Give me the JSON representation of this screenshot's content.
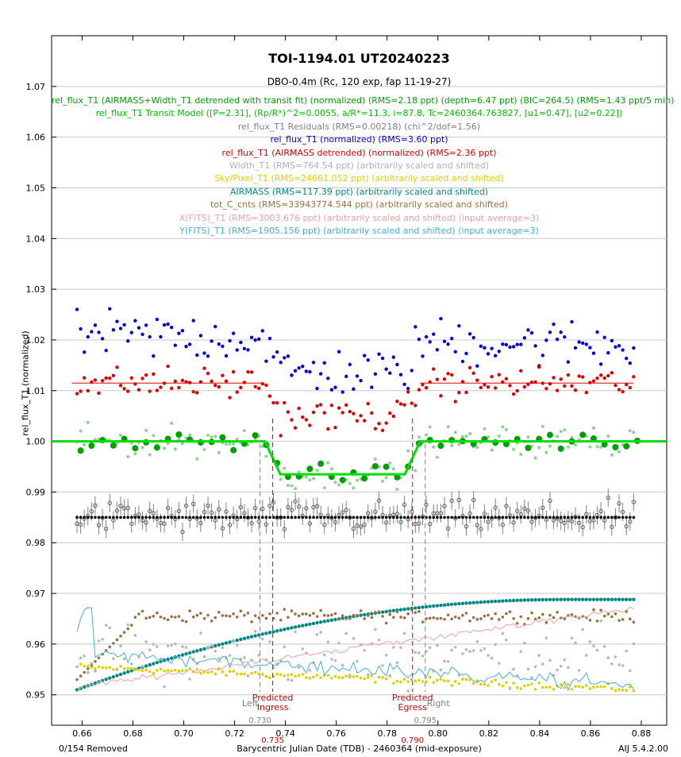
{
  "chart_data": {
    "type": "scatter",
    "title": "TOI-1194.01 UT20240223",
    "subtitle": "DBO-0.4m (Rc, 120 exp, fap 11-19-27)",
    "xlabel": "Barycentric Julian Date (TDB) - 2460364 (mid-exposure)",
    "ylabel": "rel_flux_T1 (normalized)",
    "xlim": [
      0.648,
      0.89
    ],
    "ylim": [
      0.944,
      1.08
    ],
    "xticks": [
      "0.66",
      "0.68",
      "0.70",
      "0.72",
      "0.74",
      "0.76",
      "0.78",
      "0.80",
      "0.82",
      "0.84",
      "0.86",
      "0.88"
    ],
    "yticks": [
      "0.95",
      "0.96",
      "0.97",
      "0.98",
      "0.99",
      "1.00",
      "1.01",
      "1.02",
      "1.03",
      "1.04",
      "1.05",
      "1.06",
      "1.07"
    ],
    "grid": true,
    "legend": [
      {
        "text": "rel_flux_T1 (AIRMASS+Width_T1 detrended with transit fit) (normalized) (RMS=2.18 ppt) (depth=6.47 ppt) (BIC=264.5) (RMS=1.43 ppt/5 min)",
        "color": "#00a000"
      },
      {
        "text": "rel_flux_T1 Transit Model ([P=2.31], (Rp/R*)^2=0.0055, a/R*=11.3, i=87.8, Tc=2460364.763827, [u1=0.47], [u2=0.22])",
        "color": "#00c000"
      },
      {
        "text": "rel_flux_T1 Residuals (RMS=0.00218) (chi^2/dof=1.56)",
        "color": "#808080"
      },
      {
        "text": "rel_flux_T1 (normalized) (RMS=3.60 ppt)",
        "color": "#0000e0"
      },
      {
        "text": "rel_flux_T1 (AIRMASS detrended) (normalized) (RMS=2.36 ppt)",
        "color": "#e00000"
      },
      {
        "text": "Width_T1 (RMS=764.54 ppt) (arbitrarily scaled and shifted)",
        "color": "#b0b0b0"
      },
      {
        "text": "Sky/Pixel_T1 (RMS=24661.052 ppt) (arbitrarily scaled and shifted)",
        "color": "#e0d000"
      },
      {
        "text": "AIRMASS (RMS=117.39 ppt) (arbitrarily scaled and shifted)",
        "color": "#008888"
      },
      {
        "text": "tot_C_cnts (RMS=33943774.544 ppt) (arbitrarily scaled and shifted)",
        "color": "#9a7040"
      },
      {
        "text": "X(FITS)_T1 (RMS=3003.676 ppt) (arbitrarily scaled and shifted) (input average=3)",
        "color": "#f0a0a0"
      },
      {
        "text": "Y(FITS)_T1 (RMS=1905.156 ppt) (arbitrarily scaled and shifted) (input average=3)",
        "color": "#40b0e0"
      }
    ],
    "markers": [
      {
        "x": 0.73,
        "label": "Left",
        "value": "0.730",
        "color": "#808080"
      },
      {
        "x": 0.735,
        "label": "Predicted Ingress",
        "value": "0.735",
        "color": "#cc0000"
      },
      {
        "x": 0.79,
        "label": "Predicted Egress",
        "value": "0.790",
        "color": "#cc0000"
      },
      {
        "x": 0.795,
        "label": "Right",
        "value": "0.795",
        "color": "#808080"
      }
    ],
    "transit_model": {
      "baseline": 1.0,
      "depth": 0.0065,
      "t_ingress": 0.735,
      "t_egress": 0.79,
      "ramp": 0.006
    },
    "detrended_baseline": 1.0115,
    "residual_level": 0.985,
    "x_start": 0.658,
    "x_end": 0.877,
    "n_points": 154
  },
  "footer": {
    "removed": "0/154 Removed",
    "version": "AIJ 5.4.2.00"
  }
}
